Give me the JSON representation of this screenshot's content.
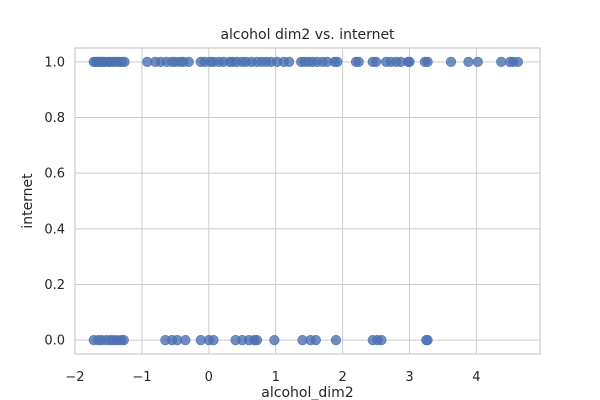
{
  "chart_data": {
    "type": "scatter",
    "title": "alcohol dim2 vs. internet",
    "xlabel": "alcohol_dim2",
    "ylabel": "internet",
    "xlim": [
      -2.0,
      4.95
    ],
    "ylim": [
      -0.05,
      1.05
    ],
    "xticks": [
      -2,
      -1,
      0,
      1,
      2,
      3,
      4
    ],
    "xtick_labels": [
      "−2",
      "−1",
      "0",
      "1",
      "2",
      "3",
      "4"
    ],
    "yticks": [
      0.0,
      0.2,
      0.4,
      0.6,
      0.8,
      1.0
    ],
    "ytick_labels": [
      "0.0",
      "0.2",
      "0.4",
      "0.6",
      "0.8",
      "1.0"
    ],
    "grid": true,
    "marker_color": "#4c72b0",
    "series": [
      {
        "x": [
          -1.72,
          -1.69,
          -1.66,
          -1.63,
          -1.61,
          -1.58,
          -1.55,
          -1.5,
          -1.47,
          -1.43,
          -1.38,
          -1.34,
          -1.3,
          -1.26,
          -0.92,
          -0.8,
          -0.72,
          -0.63,
          -0.55,
          -0.5,
          -0.43,
          -0.38,
          -0.3,
          -0.12,
          -0.06,
          0.02,
          0.07,
          0.15,
          0.22,
          0.31,
          0.36,
          0.42,
          0.5,
          0.56,
          0.64,
          0.72,
          0.79,
          0.86,
          0.93,
          1.02,
          1.12,
          1.2,
          1.38,
          1.43,
          1.49,
          1.55,
          1.62,
          1.7,
          1.77,
          1.88,
          1.92,
          2.2,
          2.24,
          2.45,
          2.5,
          2.65,
          2.72,
          2.8,
          2.87,
          2.98,
          3.0,
          3.23,
          3.27,
          3.62,
          3.88,
          4.02,
          4.37,
          4.5,
          4.55,
          4.62
        ],
        "y": [
          1,
          1,
          1,
          1,
          1,
          1,
          1,
          1,
          1,
          1,
          1,
          1,
          1,
          1,
          1,
          1,
          1,
          1,
          1,
          1,
          1,
          1,
          1,
          1,
          1,
          1,
          1,
          1,
          1,
          1,
          1,
          1,
          1,
          1,
          1,
          1,
          1,
          1,
          1,
          1,
          1,
          1,
          1,
          1,
          1,
          1,
          1,
          1,
          1,
          1,
          1,
          1,
          1,
          1,
          1,
          1,
          1,
          1,
          1,
          1,
          1,
          1,
          1,
          1,
          1,
          1,
          1,
          1,
          1,
          1
        ]
      },
      {
        "x": [
          -1.72,
          -1.65,
          -1.6,
          -1.53,
          -1.47,
          -1.42,
          -1.37,
          -1.31,
          -1.27,
          -0.65,
          -0.55,
          -0.47,
          -0.35,
          -0.12,
          0.0,
          0.07,
          0.4,
          0.5,
          0.6,
          0.68,
          0.72,
          0.98,
          1.4,
          1.52,
          1.6,
          1.9,
          2.45,
          2.52,
          2.58,
          3.25,
          3.27
        ],
        "y": [
          0,
          0,
          0,
          0,
          0,
          0,
          0,
          0,
          0,
          0,
          0,
          0,
          0,
          0,
          0,
          0,
          0,
          0,
          0,
          0,
          0,
          0,
          0,
          0,
          0,
          0,
          0,
          0,
          0,
          0,
          0
        ]
      }
    ]
  }
}
